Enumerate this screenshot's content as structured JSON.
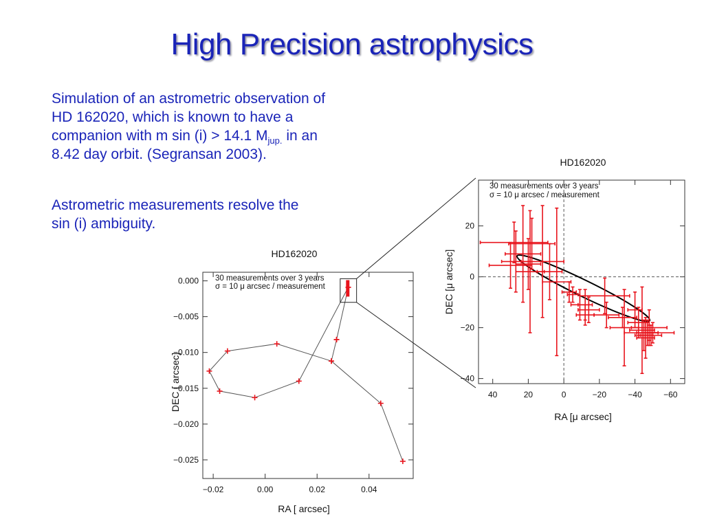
{
  "slide": {
    "title": "High Precision astrophysics",
    "para1": {
      "line1": "Simulation of an astrometric observation of",
      "line2": "HD 162020, which is known to have a",
      "line3_pre": "companion with m sin (i) > 14.1 M",
      "line3_sub": "jup.",
      "line3_post": " in an",
      "line4": "8.42 day orbit. (Segransan 2003)."
    },
    "para2": {
      "line1": "Astrometric measurements resolve the",
      "line2": "sin (i) ambiguity."
    }
  },
  "colors": {
    "title": "#1a24b8",
    "points": "#e8141c",
    "orbit": "#000000",
    "line": "#555555"
  },
  "chart_data": [
    {
      "type": "scatter",
      "title": "HD162020",
      "xlabel": "RA [ arcsec]",
      "ylabel": "DEC [ arcsec]",
      "annotation": [
        "30 measurements over 3 years",
        "σ = 10 μ arcsec / measurement"
      ],
      "xlim": [
        -0.024,
        0.057
      ],
      "ylim": [
        -0.0276,
        0.0012
      ],
      "xticks": [
        -0.02,
        0.0,
        0.02,
        0.04
      ],
      "xtick_labels": [
        "−0.02",
        "0.00",
        "0.02",
        "0.04"
      ],
      "yticks": [
        0.0,
        -0.005,
        -0.01,
        -0.015,
        -0.02,
        -0.025
      ],
      "ytick_labels": [
        "0.000",
        "−0.005",
        "−0.010",
        "−0.015",
        "−0.020",
        "−0.025"
      ],
      "series": [
        {
          "connected": true,
          "x": [
            0.053,
            0.0445,
            0.0255,
            0.0275,
            0.032,
            0.013,
            -0.004,
            -0.0175,
            -0.0215,
            -0.0145,
            0.0045,
            0.0255,
            0.0275,
            0.032
          ],
          "y": [
            -0.0252,
            -0.0171,
            -0.0112,
            -0.0082,
            -0.0009,
            -0.014,
            -0.0163,
            -0.0154,
            -0.0126,
            -0.0098,
            -0.0088,
            -0.0112,
            -0.0082,
            -0.0009
          ]
        }
      ],
      "cluster": {
        "x": 0.0318,
        "y_min": -0.0022,
        "y_max": 0.0001
      },
      "zoom_box": {
        "x": [
          0.0289,
          0.0352
        ],
        "y": [
          -0.003,
          0.0003
        ]
      }
    },
    {
      "type": "scatter",
      "title": "HD162020",
      "xlabel": "RA [μ arcsec]",
      "ylabel": "DEC [μ arcsec]",
      "annotation": [
        "30 measurements over 3 years",
        "σ = 10 μ arcsec / measurement"
      ],
      "xlim": [
        48,
        -68
      ],
      "ylim": [
        -42,
        38
      ],
      "xticks": [
        40,
        20,
        0,
        -20,
        -40,
        -60
      ],
      "xtick_labels": [
        "40",
        "20",
        "0",
        "−20",
        "−40",
        "−60"
      ],
      "yticks": [
        20,
        0,
        -20,
        -40
      ],
      "ytick_labels": [
        "20",
        "0",
        "−20",
        "−40"
      ],
      "grid": false,
      "reference_lines": {
        "x": 0,
        "y": 0
      },
      "orbit": {
        "center": [
          -11,
          -4.5
        ],
        "semi_major": 41.5,
        "semi_minor": 3.2,
        "angle_deg": -26
      },
      "points": [
        {
          "x": 28,
          "y": 13.5,
          "xerr": 19,
          "yerr": 8
        },
        {
          "x": 23,
          "y": 9,
          "xerr": 10,
          "yerr": 19
        },
        {
          "x": 27,
          "y": 6,
          "xerr": 8,
          "yerr": 12
        },
        {
          "x": 20,
          "y": 5,
          "xerr": 7,
          "yerr": 10
        },
        {
          "x": 18,
          "y": 13,
          "xerr": 13,
          "yerr": 10
        },
        {
          "x": 12,
          "y": 6,
          "xerr": 12,
          "yerr": 22
        },
        {
          "x": 30,
          "y": 4.5,
          "xerr": 12,
          "yerr": 9
        },
        {
          "x": 19,
          "y": 2,
          "xerr": 8,
          "yerr": 24
        },
        {
          "x": 4,
          "y": -2,
          "xerr": 8,
          "yerr": 29
        },
        {
          "x": 8,
          "y": 2,
          "xerr": 7,
          "yerr": 11
        },
        {
          "x": -3,
          "y": -6,
          "xerr": 4,
          "yerr": 4
        },
        {
          "x": -5,
          "y": -7,
          "xerr": 3,
          "yerr": 3
        },
        {
          "x": -9,
          "y": -11,
          "xerr": 5,
          "yerr": 6
        },
        {
          "x": -12,
          "y": -11,
          "xerr": 4,
          "yerr": 6
        },
        {
          "x": -14,
          "y": -13,
          "xerr": 6,
          "yerr": 5
        },
        {
          "x": -12,
          "y": -15,
          "xerr": 5,
          "yerr": 4
        },
        {
          "x": -23,
          "y": -7.5,
          "xerr": 14,
          "yerr": 7
        },
        {
          "x": -24,
          "y": -15,
          "xerr": 7,
          "yerr": 5
        },
        {
          "x": -33,
          "y": -16,
          "xerr": 8,
          "yerr": 4
        },
        {
          "x": -34,
          "y": -20,
          "xerr": 8,
          "yerr": 15
        },
        {
          "x": -40,
          "y": -13,
          "xerr": 4,
          "yerr": 7
        },
        {
          "x": -42,
          "y": -18,
          "xerr": 6,
          "yerr": 6
        },
        {
          "x": -44,
          "y": -21,
          "xerr": 7,
          "yerr": 17
        },
        {
          "x": -45,
          "y": -23,
          "xerr": 5,
          "yerr": 6
        },
        {
          "x": -46,
          "y": -24,
          "xerr": 5,
          "yerr": 8
        },
        {
          "x": -47,
          "y": -22,
          "xerr": 6,
          "yerr": 5
        },
        {
          "x": -48,
          "y": -20,
          "xerr": 10,
          "yerr": 7
        },
        {
          "x": -49,
          "y": -23,
          "xerr": 6,
          "yerr": 4
        },
        {
          "x": -50,
          "y": -22,
          "xerr": 3,
          "yerr": 4
        },
        {
          "x": -48,
          "y": -22,
          "xerr": 14,
          "yerr": 3
        }
      ]
    }
  ]
}
